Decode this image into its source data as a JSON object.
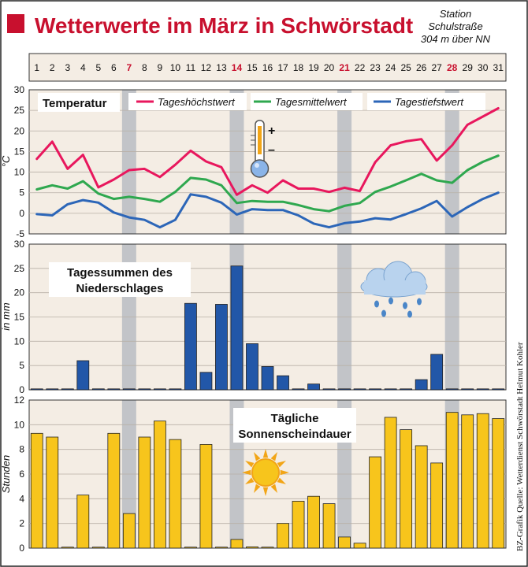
{
  "header": {
    "title": "Wetterwerte im März in Schwörstadt",
    "station_line1": "Station",
    "station_line2": "Schulstraße",
    "station_line3": "304 m über NN"
  },
  "credit": "BZ-Grafik   Quelle: Wetterdienst Schwörstadt Helmut Kohler",
  "colors": {
    "accent_red": "#c8102e",
    "panel_bg": "#f4ede4",
    "sunday_band": "#c2c4c8",
    "max_line": "#e8175d",
    "mean_line": "#2fa84f",
    "min_line": "#2c66b8",
    "precip_bar": "#2257a8",
    "sun_bar": "#f7c51c"
  },
  "days": [
    1,
    2,
    3,
    4,
    5,
    6,
    7,
    8,
    9,
    10,
    11,
    12,
    13,
    14,
    15,
    16,
    17,
    18,
    19,
    20,
    21,
    22,
    23,
    24,
    25,
    26,
    27,
    28,
    29,
    30,
    31
  ],
  "sundays": [
    7,
    14,
    21,
    28
  ],
  "icons": {
    "thermometer": "thermometer-icon",
    "rain": "rain-cloud-icon",
    "sun": "sun-icon"
  },
  "chart_data": [
    {
      "type": "line",
      "title": "Temperatur",
      "ylabel": "°C",
      "ylim": [
        -5,
        30
      ],
      "yticks": [
        -5,
        0,
        5,
        10,
        15,
        20,
        25,
        30
      ],
      "x": [
        1,
        2,
        3,
        4,
        5,
        6,
        7,
        8,
        9,
        10,
        11,
        12,
        13,
        14,
        15,
        16,
        17,
        18,
        19,
        20,
        21,
        22,
        23,
        24,
        25,
        26,
        27,
        28,
        29,
        30,
        31
      ],
      "series": [
        {
          "name": "Tageshöchstwert",
          "values": [
            13.2,
            17.4,
            10.8,
            14.2,
            6.3,
            8.2,
            10.5,
            10.8,
            8.8,
            11.8,
            15.2,
            12.6,
            11.2,
            4.5,
            6.8,
            5.0,
            8.0,
            6.0,
            6.0,
            5.2,
            6.2,
            5.4,
            12.4,
            16.5,
            17.5,
            18.0,
            12.8,
            16.5,
            21.5,
            23.5,
            25.5
          ]
        },
        {
          "name": "Tagesmittelwert",
          "values": [
            5.8,
            6.8,
            6.0,
            7.8,
            4.8,
            3.5,
            4.0,
            3.5,
            2.8,
            5.2,
            8.6,
            8.2,
            6.8,
            2.5,
            3.0,
            2.8,
            2.8,
            2.0,
            1.0,
            0.5,
            1.8,
            2.5,
            5.2,
            6.5,
            8.0,
            9.6,
            8.0,
            7.4,
            10.5,
            12.5,
            14.0
          ]
        },
        {
          "name": "Tagestiefstwert",
          "values": [
            -0.2,
            -0.5,
            2.2,
            3.2,
            2.6,
            0.2,
            -1.0,
            -1.6,
            -3.4,
            -1.6,
            4.6,
            4.0,
            2.6,
            -0.3,
            1.0,
            0.8,
            0.8,
            -0.5,
            -2.5,
            -3.4,
            -2.4,
            -2.0,
            -1.2,
            -1.5,
            -0.2,
            1.2,
            3.0,
            -0.8,
            1.5,
            3.5,
            5.0
          ]
        }
      ]
    },
    {
      "type": "bar",
      "title": "Tagessummen des Niederschlages",
      "ylabel": "in mm",
      "ylim": [
        0,
        30
      ],
      "yticks": [
        0,
        5,
        10,
        15,
        20,
        25,
        30
      ],
      "categories": [
        1,
        2,
        3,
        4,
        5,
        6,
        7,
        8,
        9,
        10,
        11,
        12,
        13,
        14,
        15,
        16,
        17,
        18,
        19,
        20,
        21,
        22,
        23,
        24,
        25,
        26,
        27,
        28,
        29,
        30,
        31
      ],
      "values": [
        0,
        0,
        0,
        6.0,
        0.2,
        0,
        0,
        0,
        0,
        0,
        17.8,
        3.6,
        17.6,
        25.5,
        9.5,
        4.8,
        2.9,
        0,
        1.2,
        0,
        0,
        0,
        0,
        0,
        0,
        2.1,
        7.3,
        0,
        0,
        0,
        0
      ]
    },
    {
      "type": "bar",
      "title": "Tägliche Sonnenscheindauer",
      "ylabel": "Stunden",
      "ylim": [
        0,
        12
      ],
      "yticks": [
        0,
        2,
        4,
        6,
        8,
        10,
        12
      ],
      "categories": [
        1,
        2,
        3,
        4,
        5,
        6,
        7,
        8,
        9,
        10,
        11,
        12,
        13,
        14,
        15,
        16,
        17,
        18,
        19,
        20,
        21,
        22,
        23,
        24,
        25,
        26,
        27,
        28,
        29,
        30,
        31
      ],
      "values": [
        9.3,
        9.0,
        0,
        4.3,
        0,
        9.3,
        2.8,
        9.0,
        10.3,
        8.8,
        0,
        8.4,
        0,
        0.7,
        0.1,
        0,
        2.0,
        3.8,
        4.2,
        3.6,
        0.9,
        0.4,
        7.4,
        10.6,
        9.6,
        8.3,
        6.9,
        11.0,
        10.8,
        10.9,
        10.5
      ]
    }
  ],
  "ui": {
    "title_line1": "Tagessummen des",
    "title_line2": "Niederschlages",
    "sun_title_line1": "Tägliche",
    "sun_title_line2": "Sonnenscheindauer",
    "thermo_plus": "+",
    "thermo_minus": "–"
  }
}
